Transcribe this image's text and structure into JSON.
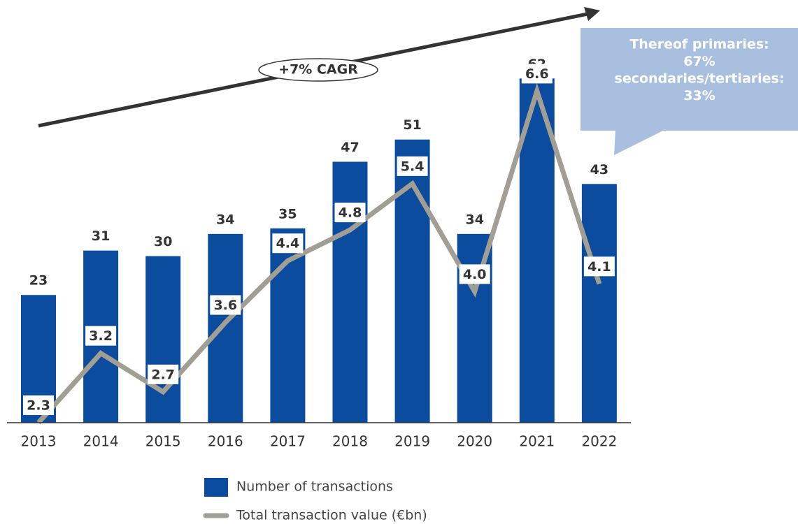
{
  "chart_data": {
    "type": "bar",
    "categories": [
      "2013",
      "2014",
      "2015",
      "2016",
      "2017",
      "2018",
      "2019",
      "2020",
      "2021",
      "2022"
    ],
    "series": [
      {
        "name": "Number of transactions",
        "color": "#0b4c9e",
        "type": "bar",
        "values": [
          23,
          31,
          30,
          34,
          35,
          47,
          51,
          34,
          62,
          43
        ]
      },
      {
        "name": "Total transaction value (€bn)",
        "color": "#a39e94",
        "type": "line",
        "axis": "y2",
        "values": [
          2.3,
          3.2,
          2.7,
          3.6,
          4.4,
          4.8,
          5.4,
          4.0,
          6.6,
          4.1
        ],
        "value_labels": [
          "2.3",
          "3.2",
          "2.7",
          "3.6",
          "4.4",
          "4.8",
          "5.4",
          "4.0",
          "6.6",
          "4.1"
        ]
      }
    ],
    "ylim": [
      0,
      75
    ],
    "y2lim": [
      2.3,
      7.7
    ],
    "annotations": [
      "+7% CAGR"
    ],
    "callout": [
      "Thereof primaries:",
      "67%",
      "secondaries/tertiaries:",
      "33%"
    ],
    "callout_color": "#a8bfe0"
  }
}
